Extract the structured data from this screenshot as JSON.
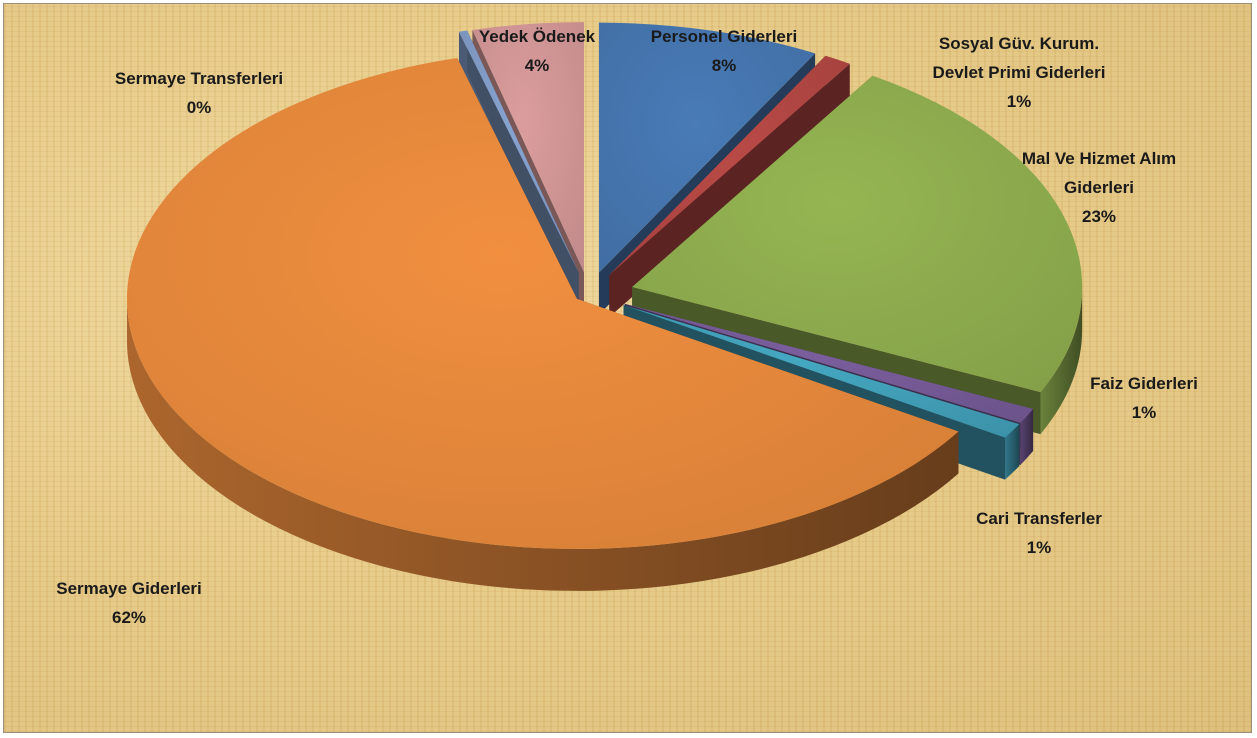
{
  "chart_data": {
    "type": "pie",
    "title": "",
    "three_d": true,
    "exploded": true,
    "legend": "none",
    "slices": [
      {
        "name": "Personel Giderleri",
        "percent_label": "8%",
        "value": 8,
        "color": "#4a7ebb"
      },
      {
        "name": "Sosyal Güv. Kurum. Devlet Primi Giderleri",
        "label_lines": [
          "Sosyal Güv. Kurum.",
          "Devlet Primi Giderleri"
        ],
        "percent_label": "1%",
        "value": 1,
        "color": "#be4b48"
      },
      {
        "name": "Mal Ve Hizmet Alım Giderleri",
        "label_lines": [
          "Mal Ve Hizmet Alım",
          "Giderleri"
        ],
        "percent_label": "23%",
        "value": 23,
        "color": "#98b954"
      },
      {
        "name": "Faiz Giderleri",
        "percent_label": "1%",
        "value": 1,
        "color": "#7d60a0"
      },
      {
        "name": "Cari Transferler",
        "percent_label": "1%",
        "value": 1,
        "color": "#46aac5"
      },
      {
        "name": "Sermaye Giderleri",
        "percent_label": "62%",
        "value": 62,
        "color": "#f69240"
      },
      {
        "name": "Sermaye Transferleri",
        "percent_label": "0%",
        "value": 0.3,
        "color": "#8aa6d4"
      },
      {
        "name": "Yedek Ödenek",
        "percent_label": "4%",
        "value": 4,
        "color": "#e0a0a0"
      }
    ]
  }
}
